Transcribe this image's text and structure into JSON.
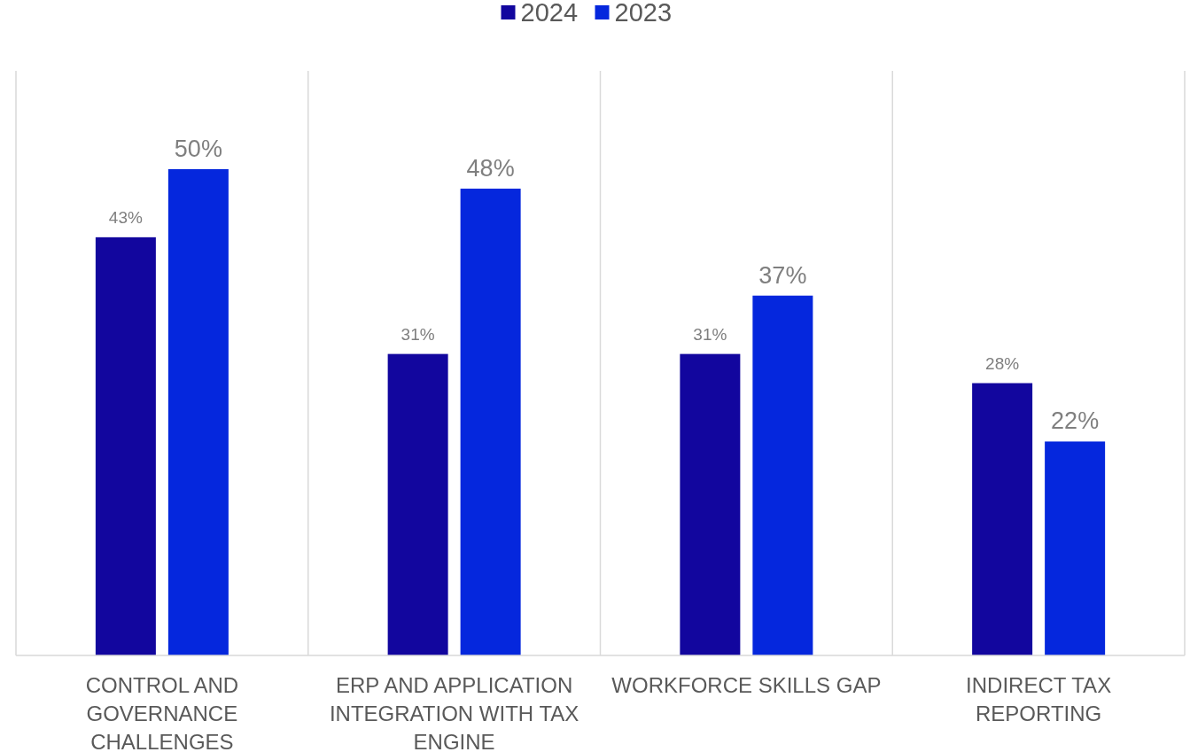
{
  "chart_data": {
    "type": "bar",
    "categories": [
      "CONTROL AND GOVERNANCE CHALLENGES",
      "ERP AND APPLICATION INTEGRATION WITH TAX ENGINE",
      "WORKFORCE SKILLS GAP",
      "INDIRECT TAX REPORTING"
    ],
    "series": [
      {
        "name": "2024",
        "color": "#12069e",
        "values": [
          43,
          31,
          31,
          28
        ],
        "value_labels": [
          "43%",
          "31%",
          "31%",
          "28%"
        ]
      },
      {
        "name": "2023",
        "color": "#0527dd",
        "values": [
          50,
          48,
          37,
          22
        ],
        "value_labels": [
          "50%",
          "48%",
          "37%",
          "22%"
        ]
      }
    ],
    "tick_labels": "x",
    "grid": "x",
    "legend": "top"
  }
}
